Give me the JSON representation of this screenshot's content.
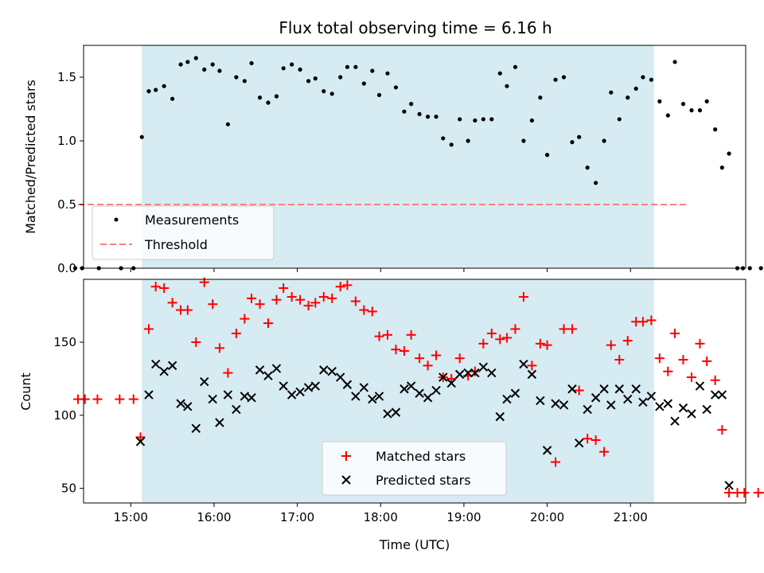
{
  "title": "Flux total observing time = 6.16 h",
  "xlabel": "Time (UTC)",
  "x_ticks": [
    "15:00",
    "16:00",
    "17:00",
    "18:00",
    "19:00",
    "20:00",
    "21:00"
  ],
  "colors": {
    "span": "#add8e6",
    "measurements": "#000000",
    "threshold": "#ff7f7f",
    "matched": "#ff0000",
    "predicted": "#000000"
  },
  "chart_data": [
    {
      "type": "scatter",
      "ylabel": "Matched/Predicted stars",
      "xlim": [
        "14:26",
        "22:23"
      ],
      "ylim": [
        0,
        1.75
      ],
      "y_ticks": [
        "0.0",
        "0.5",
        "1.0",
        "1.5"
      ],
      "shaded_span": [
        "15:08",
        "21:17"
      ],
      "threshold": {
        "name": "Threshold",
        "value": 0.5,
        "x_range": [
          "14:22",
          "21:40"
        ]
      },
      "legend_location": "lower-left",
      "series": [
        {
          "name": "Measurements",
          "points": [
            [
              "14:20",
              0
            ],
            [
              "14:25",
              0
            ],
            [
              "14:37",
              0
            ],
            [
              "14:53",
              0
            ],
            [
              "15:02",
              0
            ],
            [
              "15:08",
              1.03
            ],
            [
              "15:13",
              1.39
            ],
            [
              "15:18",
              1.4
            ],
            [
              "15:24",
              1.43
            ],
            [
              "15:30",
              1.33
            ],
            [
              "15:36",
              1.6
            ],
            [
              "15:41",
              1.62
            ],
            [
              "15:47",
              1.65
            ],
            [
              "15:53",
              1.56
            ],
            [
              "15:59",
              1.6
            ],
            [
              "16:04",
              1.55
            ],
            [
              "16:10",
              1.13
            ],
            [
              "16:16",
              1.5
            ],
            [
              "16:22",
              1.47
            ],
            [
              "16:27",
              1.61
            ],
            [
              "16:33",
              1.34
            ],
            [
              "16:39",
              1.3
            ],
            [
              "16:45",
              1.35
            ],
            [
              "16:50",
              1.57
            ],
            [
              "16:56",
              1.6
            ],
            [
              "17:02",
              1.56
            ],
            [
              "17:08",
              1.47
            ],
            [
              "17:13",
              1.49
            ],
            [
              "17:19",
              1.39
            ],
            [
              "17:25",
              1.37
            ],
            [
              "17:31",
              1.5
            ],
            [
              "17:36",
              1.58
            ],
            [
              "17:42",
              1.58
            ],
            [
              "17:48",
              1.45
            ],
            [
              "17:54",
              1.55
            ],
            [
              "17:59",
              1.36
            ],
            [
              "18:05",
              1.53
            ],
            [
              "18:11",
              1.42
            ],
            [
              "18:17",
              1.23
            ],
            [
              "18:22",
              1.29
            ],
            [
              "18:28",
              1.21
            ],
            [
              "18:34",
              1.19
            ],
            [
              "18:40",
              1.19
            ],
            [
              "18:45",
              1.02
            ],
            [
              "18:51",
              0.97
            ],
            [
              "18:57",
              1.17
            ],
            [
              "19:03",
              1.0
            ],
            [
              "19:08",
              1.16
            ],
            [
              "19:14",
              1.17
            ],
            [
              "19:20",
              1.17
            ],
            [
              "19:26",
              1.53
            ],
            [
              "19:31",
              1.43
            ],
            [
              "19:37",
              1.58
            ],
            [
              "19:43",
              1.0
            ],
            [
              "19:49",
              1.16
            ],
            [
              "19:55",
              1.34
            ],
            [
              "20:00",
              0.89
            ],
            [
              "20:06",
              1.48
            ],
            [
              "20:12",
              1.5
            ],
            [
              "20:18",
              0.99
            ],
            [
              "20:23",
              1.03
            ],
            [
              "20:29",
              0.79
            ],
            [
              "20:35",
              0.67
            ],
            [
              "20:41",
              1.0
            ],
            [
              "20:46",
              1.38
            ],
            [
              "20:52",
              1.17
            ],
            [
              "20:58",
              1.34
            ],
            [
              "21:04",
              1.41
            ],
            [
              "21:09",
              1.5
            ],
            [
              "21:15",
              1.48
            ],
            [
              "21:21",
              1.31
            ],
            [
              "21:27",
              1.2
            ],
            [
              "21:32",
              1.62
            ],
            [
              "21:38",
              1.29
            ],
            [
              "21:44",
              1.24
            ],
            [
              "21:50",
              1.24
            ],
            [
              "21:55",
              1.31
            ],
            [
              "22:01",
              1.09
            ],
            [
              "22:06",
              0.79
            ],
            [
              "22:11",
              0.9
            ],
            [
              "22:17",
              0
            ],
            [
              "22:21",
              0
            ],
            [
              "22:26",
              0
            ],
            [
              "22:34",
              0
            ],
            [
              "22:38",
              0
            ]
          ]
        }
      ]
    },
    {
      "type": "scatter",
      "ylabel": "Count",
      "xlim": [
        "14:26",
        "22:23"
      ],
      "ylim": [
        40,
        193
      ],
      "y_ticks": [
        "50",
        "100",
        "150"
      ],
      "shaded_span": [
        "15:08",
        "21:17"
      ],
      "legend_location": "lower-center",
      "series": [
        {
          "name": "Matched stars",
          "marker": "plus",
          "points": [
            [
              "14:22",
              111
            ],
            [
              "14:27",
              111
            ],
            [
              "14:36",
              111
            ],
            [
              "14:52",
              111
            ],
            [
              "15:02",
              111
            ],
            [
              "15:07",
              85
            ],
            [
              "15:13",
              159
            ],
            [
              "15:18",
              188
            ],
            [
              "15:24",
              187
            ],
            [
              "15:30",
              177
            ],
            [
              "15:36",
              172
            ],
            [
              "15:41",
              172
            ],
            [
              "15:47",
              150
            ],
            [
              "15:53",
              191
            ],
            [
              "15:59",
              176
            ],
            [
              "16:04",
              146
            ],
            [
              "16:10",
              129
            ],
            [
              "16:16",
              156
            ],
            [
              "16:22",
              166
            ],
            [
              "16:27",
              180
            ],
            [
              "16:33",
              176
            ],
            [
              "16:39",
              163
            ],
            [
              "16:45",
              179
            ],
            [
              "16:50",
              187
            ],
            [
              "16:56",
              181
            ],
            [
              "17:02",
              179
            ],
            [
              "17:08",
              175
            ],
            [
              "17:13",
              177
            ],
            [
              "17:19",
              181
            ],
            [
              "17:25",
              180
            ],
            [
              "17:31",
              188
            ],
            [
              "17:36",
              189
            ],
            [
              "17:42",
              178
            ],
            [
              "17:48",
              172
            ],
            [
              "17:54",
              171
            ],
            [
              "17:59",
              154
            ],
            [
              "18:05",
              155
            ],
            [
              "18:11",
              145
            ],
            [
              "18:17",
              144
            ],
            [
              "18:22",
              155
            ],
            [
              "18:28",
              139
            ],
            [
              "18:34",
              134
            ],
            [
              "18:40",
              141
            ],
            [
              "18:45",
              126
            ],
            [
              "18:51",
              125
            ],
            [
              "18:57",
              139
            ],
            [
              "19:03",
              127
            ],
            [
              "19:08",
              130
            ],
            [
              "19:14",
              149
            ],
            [
              "19:20",
              156
            ],
            [
              "19:26",
              152
            ],
            [
              "19:31",
              153
            ],
            [
              "19:37",
              159
            ],
            [
              "19:43",
              181
            ],
            [
              "19:49",
              134
            ],
            [
              "19:55",
              149
            ],
            [
              "20:00",
              148
            ],
            [
              "20:06",
              68
            ],
            [
              "20:12",
              159
            ],
            [
              "20:18",
              159
            ],
            [
              "20:23",
              117
            ],
            [
              "20:29",
              84
            ],
            [
              "20:35",
              83
            ],
            [
              "20:41",
              75
            ],
            [
              "20:46",
              148
            ],
            [
              "20:52",
              138
            ],
            [
              "20:58",
              151
            ],
            [
              "21:04",
              164
            ],
            [
              "21:09",
              164
            ],
            [
              "21:15",
              165
            ],
            [
              "21:21",
              139
            ],
            [
              "21:27",
              130
            ],
            [
              "21:32",
              156
            ],
            [
              "21:38",
              138
            ],
            [
              "21:44",
              126
            ],
            [
              "21:50",
              149
            ],
            [
              "21:55",
              137
            ],
            [
              "22:01",
              124
            ],
            [
              "22:06",
              90
            ],
            [
              "22:11",
              47
            ],
            [
              "22:17",
              47
            ],
            [
              "22:22",
              47
            ],
            [
              "22:32",
              47
            ],
            [
              "22:37",
              47
            ]
          ]
        },
        {
          "name": "Predicted stars",
          "marker": "cross",
          "points": [
            [
              "15:07",
              82
            ],
            [
              "15:13",
              114
            ],
            [
              "15:18",
              135
            ],
            [
              "15:24",
              130
            ],
            [
              "15:30",
              134
            ],
            [
              "15:36",
              108
            ],
            [
              "15:41",
              106
            ],
            [
              "15:47",
              91
            ],
            [
              "15:53",
              123
            ],
            [
              "15:59",
              111
            ],
            [
              "16:04",
              95
            ],
            [
              "16:10",
              114
            ],
            [
              "16:16",
              104
            ],
            [
              "16:22",
              113
            ],
            [
              "16:27",
              112
            ],
            [
              "16:33",
              131
            ],
            [
              "16:39",
              127
            ],
            [
              "16:45",
              132
            ],
            [
              "16:50",
              120
            ],
            [
              "16:56",
              114
            ],
            [
              "17:02",
              116
            ],
            [
              "17:08",
              119
            ],
            [
              "17:13",
              120
            ],
            [
              "17:19",
              131
            ],
            [
              "17:25",
              130
            ],
            [
              "17:31",
              126
            ],
            [
              "17:36",
              121
            ],
            [
              "17:42",
              113
            ],
            [
              "17:48",
              119
            ],
            [
              "17:54",
              111
            ],
            [
              "17:59",
              113
            ],
            [
              "18:05",
              101
            ],
            [
              "18:11",
              102
            ],
            [
              "18:17",
              118
            ],
            [
              "18:22",
              120
            ],
            [
              "18:28",
              115
            ],
            [
              "18:34",
              112
            ],
            [
              "18:40",
              117
            ],
            [
              "18:45",
              126
            ],
            [
              "18:51",
              122
            ],
            [
              "18:57",
              128
            ],
            [
              "19:03",
              129
            ],
            [
              "19:08",
              129
            ],
            [
              "19:14",
              133
            ],
            [
              "19:20",
              129
            ],
            [
              "19:26",
              99
            ],
            [
              "19:31",
              111
            ],
            [
              "19:37",
              115
            ],
            [
              "19:43",
              135
            ],
            [
              "19:49",
              128
            ],
            [
              "19:55",
              110
            ],
            [
              "20:00",
              76
            ],
            [
              "20:06",
              108
            ],
            [
              "20:12",
              107
            ],
            [
              "20:18",
              118
            ],
            [
              "20:23",
              81
            ],
            [
              "20:29",
              104
            ],
            [
              "20:35",
              112
            ],
            [
              "20:41",
              118
            ],
            [
              "20:46",
              107
            ],
            [
              "20:52",
              118
            ],
            [
              "20:58",
              111
            ],
            [
              "21:04",
              118
            ],
            [
              "21:09",
              109
            ],
            [
              "21:15",
              113
            ],
            [
              "21:21",
              106
            ],
            [
              "21:27",
              108
            ],
            [
              "21:32",
              96
            ],
            [
              "21:38",
              105
            ],
            [
              "21:44",
              101
            ],
            [
              "21:50",
              120
            ],
            [
              "21:55",
              104
            ],
            [
              "22:01",
              114
            ],
            [
              "22:06",
              114
            ],
            [
              "22:11",
              52
            ]
          ]
        }
      ]
    }
  ]
}
